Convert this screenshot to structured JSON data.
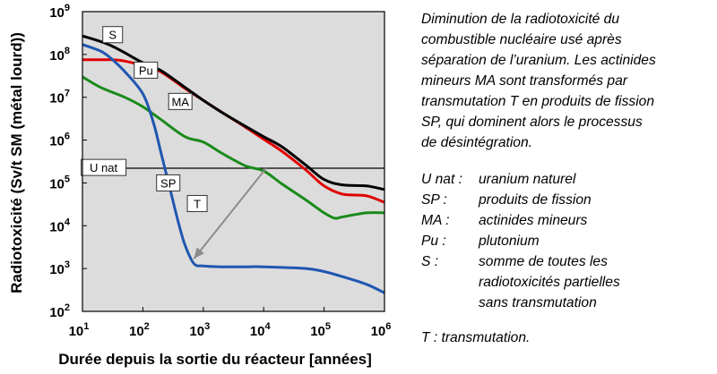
{
  "chart_data": {
    "type": "line",
    "xscale": "log",
    "yscale": "log",
    "xlim": [
      10,
      1000000
    ],
    "ylim": [
      100,
      1000000000
    ],
    "xlabel": "Durée depuis la sortie du réacteur [années]",
    "ylabel": "Radiotoxicité (Sv/t SM (métal lourd))",
    "x_ticks": [
      10,
      100,
      1000,
      10000,
      100000,
      1000000
    ],
    "y_ticks": [
      100,
      1000,
      10000,
      100000,
      1000000,
      10000000,
      100000000,
      1000000000
    ],
    "x_tick_labels": [
      {
        "base": "10",
        "exp": "1"
      },
      {
        "base": "10",
        "exp": "2"
      },
      {
        "base": "10",
        "exp": "3"
      },
      {
        "base": "10",
        "exp": "4"
      },
      {
        "base": "10",
        "exp": "5"
      },
      {
        "base": "10",
        "exp": "6"
      }
    ],
    "y_tick_labels": [
      {
        "base": "10",
        "exp": "2"
      },
      {
        "base": "10",
        "exp": "3"
      },
      {
        "base": "10",
        "exp": "4"
      },
      {
        "base": "10",
        "exp": "5"
      },
      {
        "base": "10",
        "exp": "6"
      },
      {
        "base": "10",
        "exp": "7"
      },
      {
        "base": "10",
        "exp": "8"
      },
      {
        "base": "10",
        "exp": "9"
      }
    ],
    "grid": false,
    "background_color": "#dcdcdc",
    "series": [
      {
        "name": "S",
        "color": "#000000",
        "x": [
          10,
          20,
          30,
          50,
          100,
          200,
          500,
          1000,
          2000,
          5000,
          10000,
          20000,
          50000,
          100000,
          200000,
          500000,
          1000000
        ],
        "y": [
          270000000,
          200000000,
          160000000,
          110000000,
          64000000,
          42000000,
          17000000,
          8500000,
          4500000,
          2100000,
          1200000,
          700000,
          260000,
          120000,
          90000,
          85000,
          70000
        ]
      },
      {
        "name": "Pu",
        "color": "#e00000",
        "x": [
          10,
          30,
          50,
          100,
          200,
          500,
          1000,
          2000,
          5000,
          10000,
          20000,
          50000,
          100000,
          200000,
          500000,
          1000000
        ],
        "y": [
          75000000,
          75000000,
          70000000,
          55000000,
          39000000,
          16000000,
          8500000,
          4500000,
          2000000,
          1050000,
          550000,
          200000,
          85000,
          55000,
          50000,
          35000
        ]
      },
      {
        "name": "MA",
        "color": "#1a8a1a",
        "x": [
          10,
          20,
          50,
          100,
          200,
          500,
          1000,
          2000,
          5000,
          10000,
          20000,
          50000,
          100000,
          150000,
          200000,
          500000,
          1000000
        ],
        "y": [
          30000000,
          17000000,
          10000000,
          6000000,
          3000000,
          1200000,
          900000,
          500000,
          250000,
          190000,
          95000,
          40000,
          20000,
          15000,
          16000,
          20000,
          20000
        ]
      },
      {
        "name": "SP",
        "color": "#1f56b0",
        "x": [
          10,
          20,
          30,
          50,
          100,
          150,
          200,
          300,
          400,
          500,
          700,
          1000,
          2000,
          5000,
          10000,
          50000,
          100000,
          200000,
          500000,
          1000000
        ],
        "y": [
          170000000,
          120000000,
          80000000,
          40000000,
          12000000,
          2500000,
          500000,
          50000,
          10000,
          3500,
          1300,
          1150,
          1100,
          1100,
          1100,
          1000,
          850,
          650,
          430,
          270
        ]
      },
      {
        "name": "U nat",
        "color": "#000000",
        "x": [
          10,
          1000000
        ],
        "y": [
          220000,
          220000
        ]
      }
    ],
    "annotations": [
      {
        "text": "T",
        "type": "arrow",
        "from": [
          11000,
          220000
        ],
        "to": [
          700,
          1700
        ]
      }
    ]
  },
  "caption": {
    "lines": [
      "Diminution de la radiotoxicité du",
      "combustible nucléaire usé après",
      "séparation de l’uranium. Les actinides",
      "mineurs MA sont transformés par",
      "transmutation T en produits de fission",
      "SP, qui dominent alors le processus",
      "de désintégration."
    ]
  },
  "legend": [
    {
      "key": "U nat :",
      "desc": [
        "uranium naturel"
      ]
    },
    {
      "key": "SP :",
      "desc": [
        "produits de fission"
      ]
    },
    {
      "key": "MA :",
      "desc": [
        "actinides mineurs"
      ]
    },
    {
      "key": "Pu :",
      "desc": [
        "plutonium"
      ]
    },
    {
      "key": "S :",
      "desc": [
        "somme de toutes les",
        "radiotoxicités partielles",
        "sans transmutation"
      ]
    }
  ],
  "transmutation_note": "T : transmutation."
}
